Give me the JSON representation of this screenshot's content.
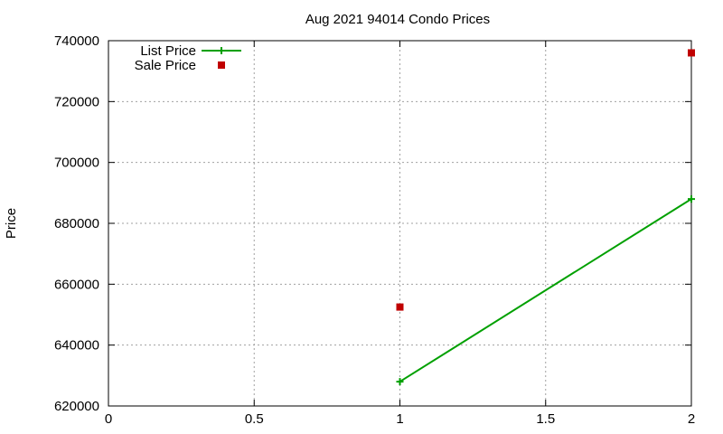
{
  "chart_data": {
    "type": "line",
    "title": "Aug 2021 94014 Condo Prices",
    "xlabel": "",
    "ylabel": "Price",
    "xlim": [
      0,
      2
    ],
    "ylim": [
      620000,
      740000
    ],
    "x_ticks": [
      {
        "value": 0,
        "label": "0"
      },
      {
        "value": 0.5,
        "label": "0.5"
      },
      {
        "value": 1,
        "label": "1"
      },
      {
        "value": 1.5,
        "label": "1.5"
      },
      {
        "value": 2,
        "label": "2"
      }
    ],
    "y_ticks": [
      {
        "value": 620000,
        "label": "620000"
      },
      {
        "value": 640000,
        "label": "640000"
      },
      {
        "value": 660000,
        "label": "660000"
      },
      {
        "value": 680000,
        "label": "680000"
      },
      {
        "value": 700000,
        "label": "700000"
      },
      {
        "value": 720000,
        "label": "720000"
      },
      {
        "value": 740000,
        "label": "740000"
      }
    ],
    "grid": true,
    "legend_position": "top-left",
    "series": [
      {
        "name": "List Price",
        "style": "linespoints",
        "marker": "plus",
        "color": "#00a000",
        "x": [
          1,
          2
        ],
        "y": [
          628000,
          688000
        ]
      },
      {
        "name": "Sale Price",
        "style": "points",
        "marker": "square",
        "color": "#c00000",
        "x": [
          1,
          2
        ],
        "y": [
          652500,
          736000
        ]
      }
    ]
  }
}
